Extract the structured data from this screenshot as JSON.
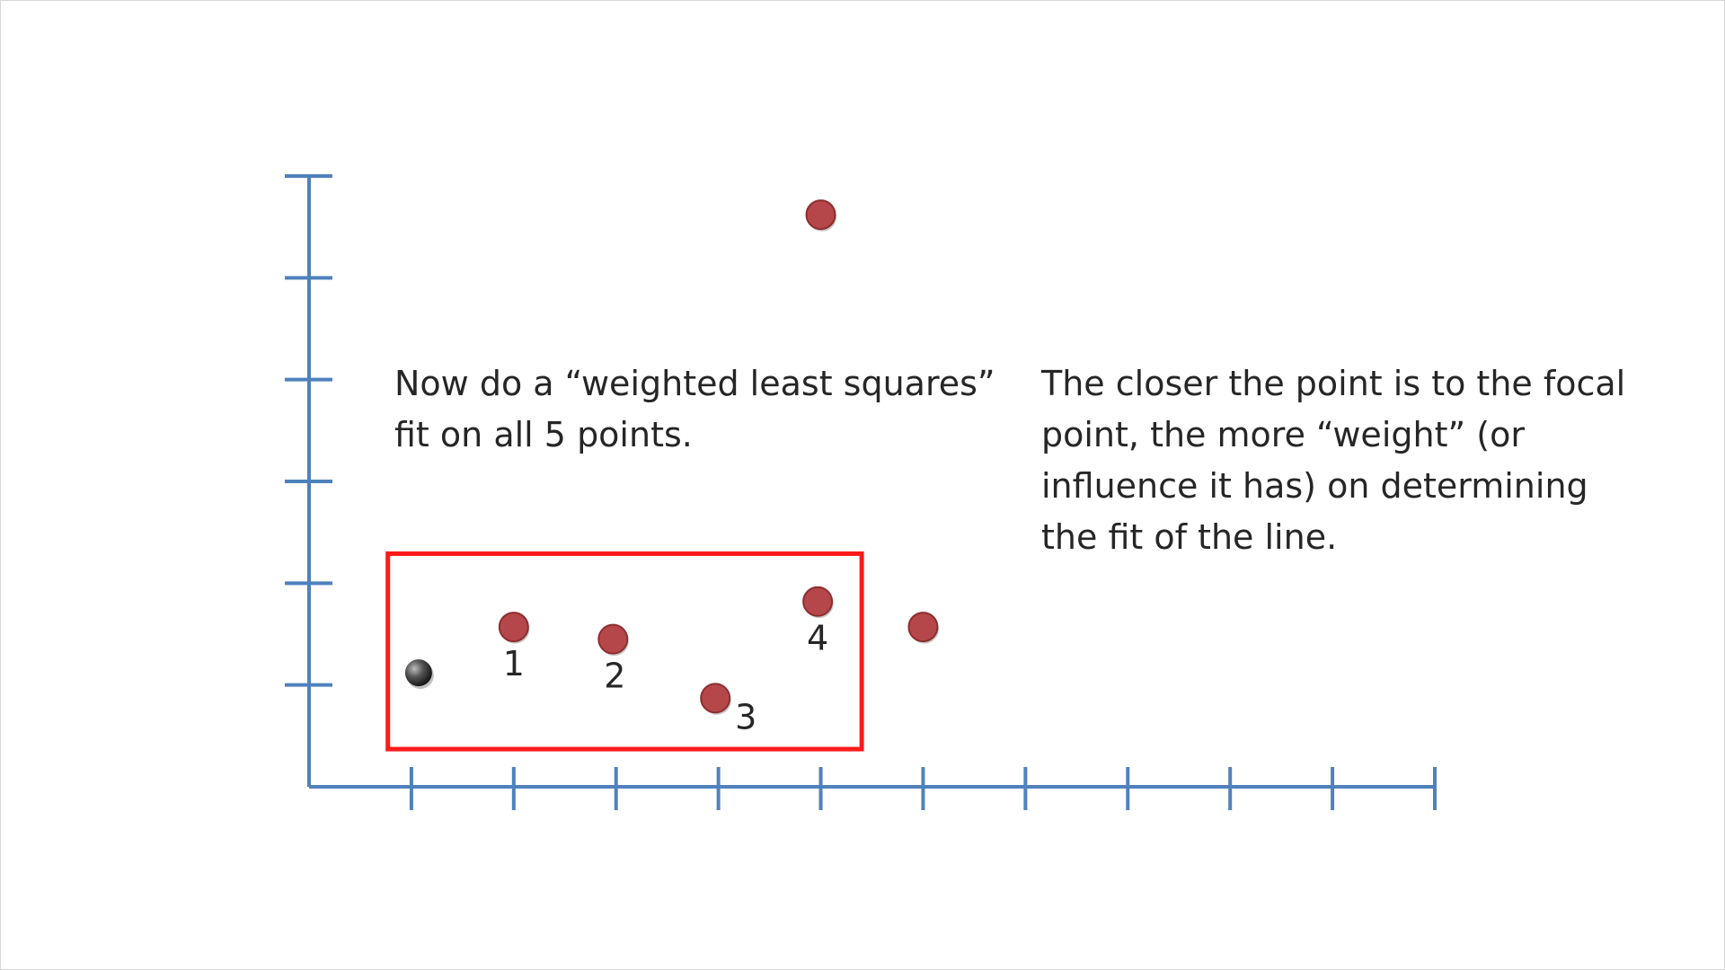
{
  "chart_data": {
    "type": "scatter",
    "xlim": [
      0,
      11
    ],
    "ylim": [
      0,
      6
    ],
    "x_ticks": [
      1,
      2,
      3,
      4,
      5,
      6,
      7,
      8,
      9,
      10,
      11
    ],
    "y_ticks": [
      1,
      2,
      3,
      4,
      5,
      6
    ],
    "points": [
      {
        "x": 5.0,
        "y": 5.62
      },
      {
        "x": 6.0,
        "y": 1.57
      }
    ],
    "focal_point": {
      "x": 1.07,
      "y": 1.12
    },
    "labeled_points": [
      {
        "x": 2.0,
        "y": 1.57,
        "label": "1"
      },
      {
        "x": 2.97,
        "y": 1.45,
        "label": "2"
      },
      {
        "x": 3.97,
        "y": 0.87,
        "label": "3"
      },
      {
        "x": 4.97,
        "y": 1.82,
        "label": "4"
      }
    ],
    "highlight_box": {
      "x_range": [
        0.77,
        5.4
      ],
      "y_range": [
        0.37,
        2.29
      ]
    },
    "colors": {
      "axis": "#4f81bd",
      "point": "#b5474a",
      "point_edge": "#8e2e30",
      "focal": "#3a3a3a",
      "box": "#ff1a1a"
    }
  },
  "annotations": {
    "left_lines": [
      "Now do a “weighted least squares”",
      "fit on all 5 points."
    ],
    "right_lines": [
      "The closer the point is to the focal",
      "point, the more “weight” (or",
      "influence it has) on determining",
      "the fit of the line."
    ]
  }
}
